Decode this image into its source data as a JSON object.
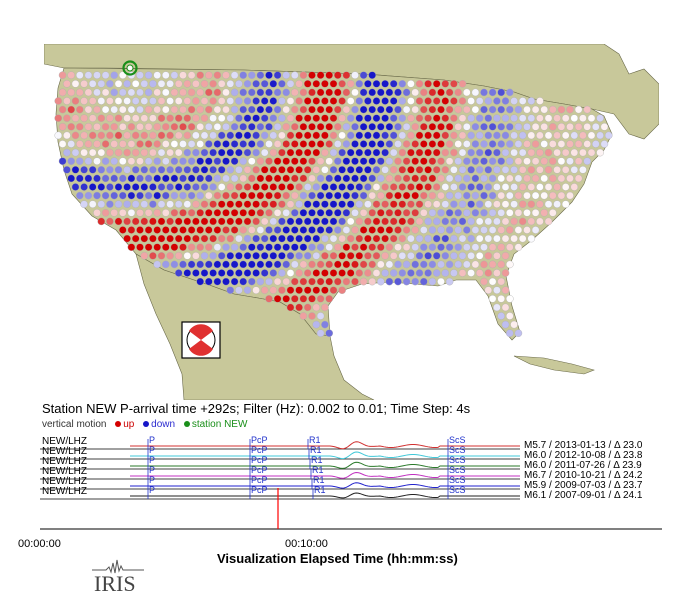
{
  "header": {
    "info": "Station NEW  P-arrival time +292s;  Filter (Hz): 0.002 to 0.01;  Time Step: 4s"
  },
  "legend": {
    "prefix": "vertical motion",
    "up": "up",
    "down": "down",
    "station": "station NEW"
  },
  "colors": {
    "up": "#d40000",
    "down": "#1616c8",
    "neutral": "#ffffff",
    "station_ring": "#1a8f1a",
    "land": "#c8c89a",
    "water": "#ffffff",
    "picker": "#ff0000"
  },
  "traces": [
    {
      "channel": "NEW/LHZ",
      "event": "M5.7 / 2013-01-13 / Δ 23.0",
      "color": "#d03030",
      "phases": [
        "P",
        "PcP",
        "R1",
        "ScS"
      ]
    },
    {
      "channel": "NEW/LHZ",
      "event": "M6.0 / 2012-10-08 / Δ 23.8",
      "color": "#40c8d8",
      "phases": [
        "P",
        "PcP",
        "R1",
        "ScS"
      ]
    },
    {
      "channel": "NEW/LHZ",
      "event": "M6.0 / 2011-07-26 / Δ 23.9",
      "color": "#2a7a2a",
      "phases": [
        "P",
        "PcP",
        "R1",
        "ScS"
      ]
    },
    {
      "channel": "NEW/LHZ",
      "event": "M6.7 / 2010-10-21 / Δ 24.2",
      "color": "#c030c0",
      "phases": [
        "P",
        "PcP",
        "R1",
        "ScS"
      ]
    },
    {
      "channel": "NEW/LHZ",
      "event": "M5.9 / 2009-07-03 / Δ 23.7",
      "color": "#2222cc",
      "phases": [
        "P",
        "PcP",
        "R1",
        "ScS"
      ]
    },
    {
      "channel": "NEW/LHZ",
      "event": "M6.1 / 2007-09-01 / Δ 24.1",
      "color": "#222222",
      "phases": [
        "P",
        "PcP",
        "R1",
        "ScS"
      ]
    }
  ],
  "time_axis": {
    "start": "00:00:00",
    "mid": "00:10:00",
    "title": "Visualization Elapsed Time (hh:mm:ss)"
  },
  "logo": {
    "text": "IRIS",
    "icon": "seismograph-icon"
  },
  "map_icons": {
    "station_marker": "station-ring-icon",
    "focal_mechanism": "beachball-icon"
  }
}
